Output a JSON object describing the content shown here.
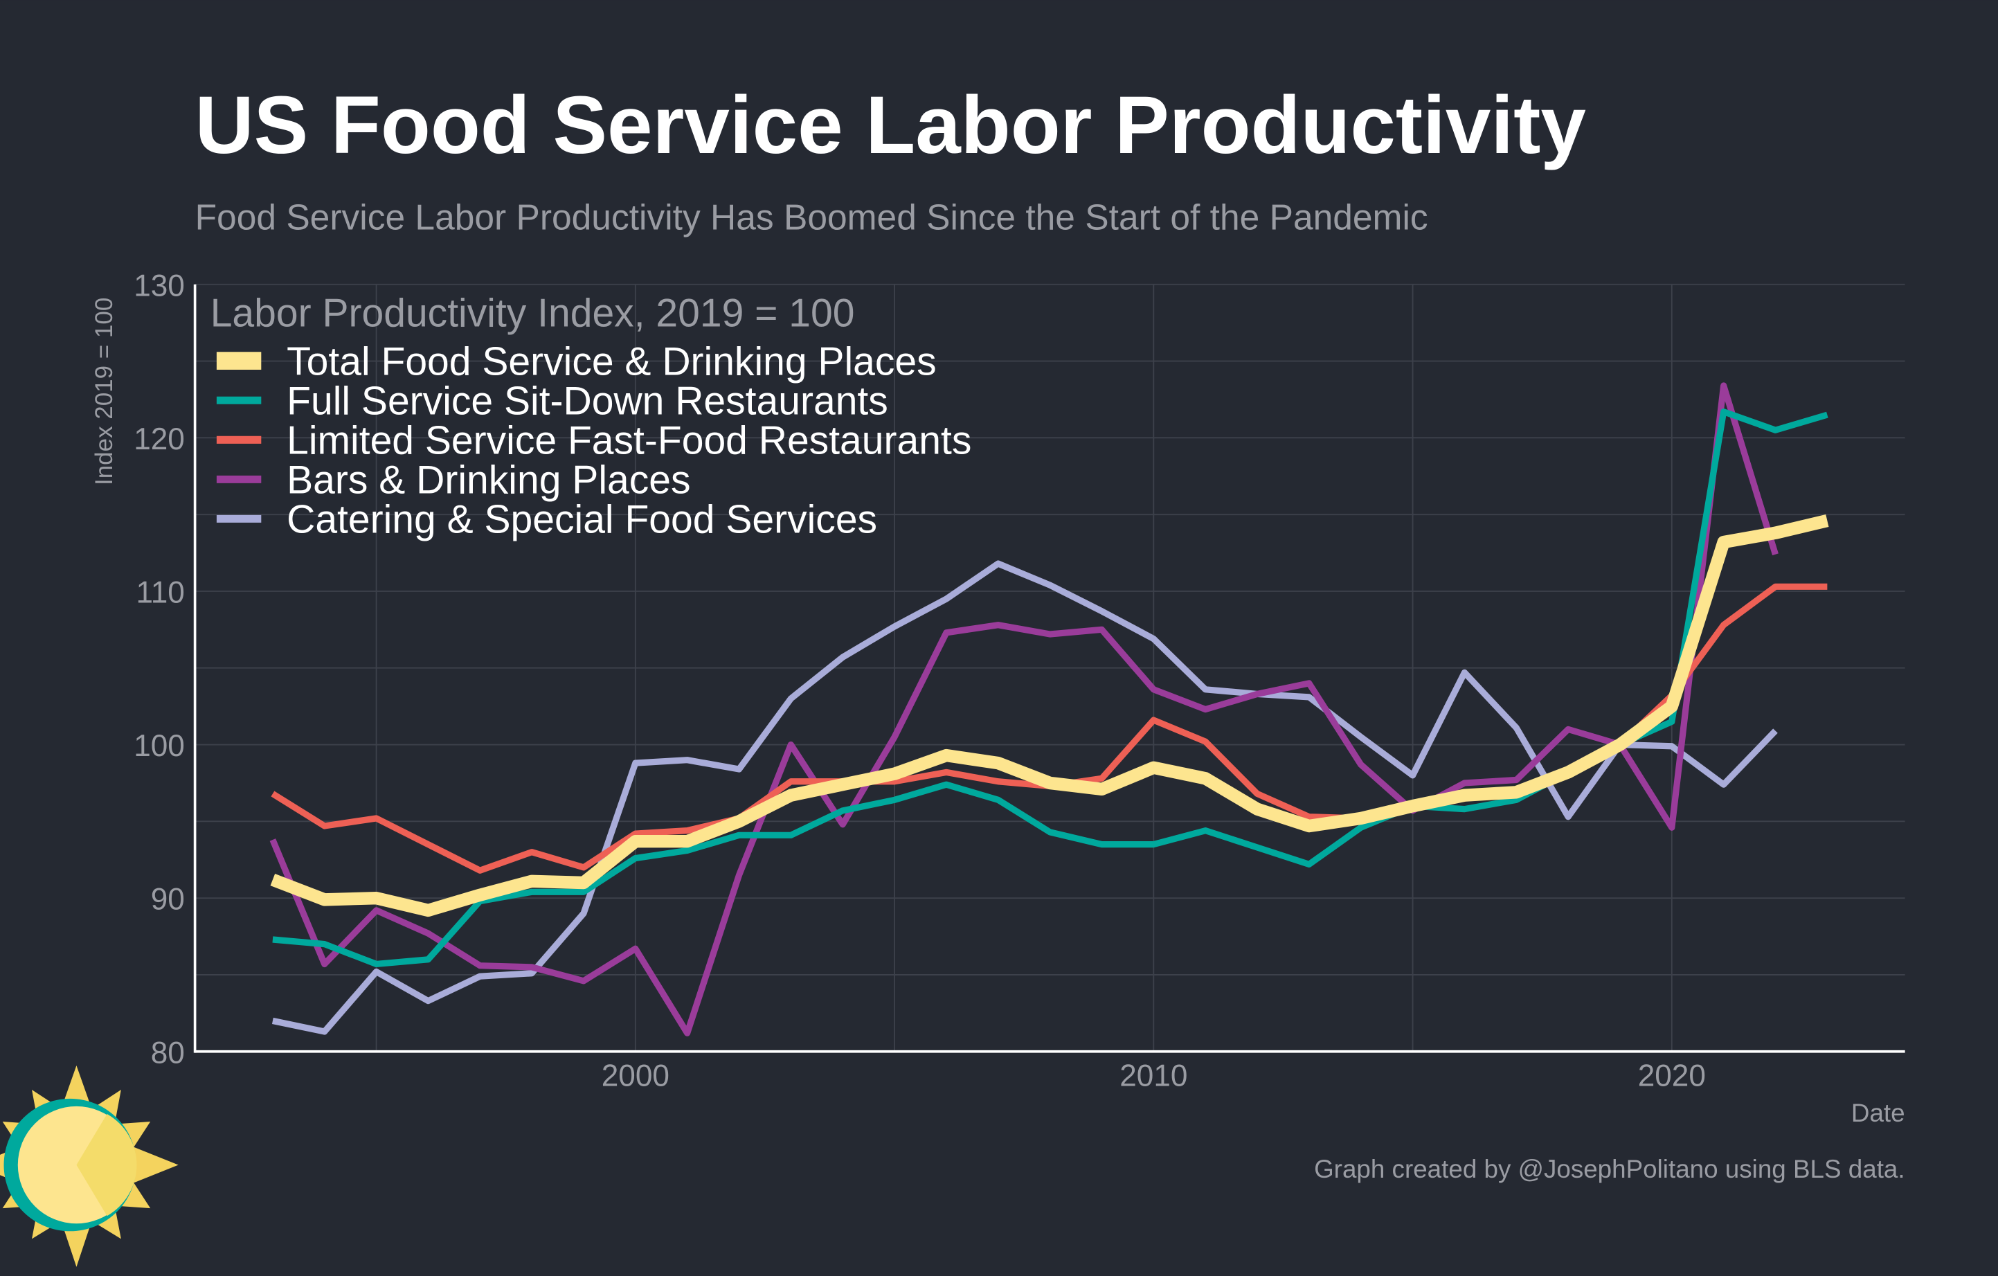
{
  "chart_data": {
    "type": "line",
    "title": "US Food Service Labor Productivity",
    "subtitle": "Food Service Labor Productivity Has Boomed Since the Start of the Pandemic",
    "y_label": "Index 2019 = 100",
    "x_label": "Date",
    "legend_title": "Labor Productivity Index, 2019 = 100",
    "credit": "Graph created by @JosephPolitano using BLS data.",
    "legend": "upper left",
    "grid": true,
    "x": [
      1993,
      1994,
      1995,
      1996,
      1997,
      1998,
      1999,
      2000,
      2001,
      2002,
      2003,
      2004,
      2005,
      2006,
      2007,
      2008,
      2009,
      2010,
      2011,
      2012,
      2013,
      2014,
      2015,
      2016,
      2017,
      2018,
      2019,
      2020,
      2021,
      2022,
      2023
    ],
    "xlim": [
      1991.5,
      2024.5
    ],
    "xticks": [
      2000,
      2010,
      2020
    ],
    "ylim": [
      80,
      130
    ],
    "yticks": [
      80,
      90,
      100,
      110,
      120,
      130
    ],
    "series": [
      {
        "name": "Total Food Service & Drinking Places",
        "color": "#fde58f",
        "values": [
          91.2,
          89.9,
          90.0,
          89.2,
          90.2,
          91.1,
          91.0,
          93.7,
          93.7,
          95.0,
          96.7,
          97.4,
          98.1,
          99.3,
          98.8,
          97.5,
          97.1,
          98.5,
          97.8,
          95.8,
          94.7,
          95.2,
          96.0,
          96.7,
          96.9,
          98.2,
          100,
          102.5,
          113.2,
          113.8,
          114.6
        ]
      },
      {
        "name": "Full Service Sit-Down Restaurants",
        "color": "#00a99d",
        "values": [
          87.3,
          87.0,
          85.7,
          86.0,
          89.8,
          90.4,
          90.4,
          92.6,
          93.1,
          94.1,
          94.1,
          95.7,
          96.4,
          97.4,
          96.4,
          94.3,
          93.5,
          93.5,
          94.4,
          93.3,
          92.2,
          94.6,
          96.0,
          95.8,
          96.4,
          98.2,
          100,
          101.5,
          121.7,
          120.5,
          121.5
        ]
      },
      {
        "name": "Limited Service Fast-Food Restaurants",
        "color": "#ee6055",
        "values": [
          96.8,
          94.7,
          95.2,
          93.5,
          91.8,
          93.0,
          92.0,
          94.2,
          94.4,
          95.2,
          97.6,
          97.6,
          97.6,
          98.2,
          97.6,
          97.3,
          97.8,
          101.6,
          100.2,
          96.8,
          95.3,
          95.2,
          96.0,
          96.5,
          96.8,
          98.2,
          100,
          103.2,
          107.8,
          110.3,
          110.3
        ]
      },
      {
        "name": "Bars & Drinking Places",
        "color": "#9a3c9a",
        "values": [
          93.8,
          85.7,
          89.2,
          87.7,
          85.6,
          85.5,
          84.6,
          86.7,
          81.2,
          91.5,
          100.0,
          94.8,
          100.5,
          107.3,
          107.8,
          107.2,
          107.5,
          103.6,
          102.3,
          103.3,
          104.0,
          98.7,
          95.7,
          97.5,
          97.7,
          101.0,
          100,
          94.6,
          123.4,
          112.4,
          null
        ]
      },
      {
        "name": "Catering & Special Food Services",
        "color": "#a9acd9",
        "values": [
          82.0,
          81.3,
          85.2,
          83.3,
          84.9,
          85.1,
          89.0,
          98.8,
          99.0,
          98.4,
          103.0,
          105.7,
          107.7,
          109.5,
          111.8,
          110.4,
          108.7,
          106.9,
          103.6,
          103.3,
          103.1,
          100.5,
          98.0,
          104.7,
          101.1,
          95.3,
          100.0,
          99.9,
          97.4,
          100.9,
          null
        ]
      }
    ]
  }
}
